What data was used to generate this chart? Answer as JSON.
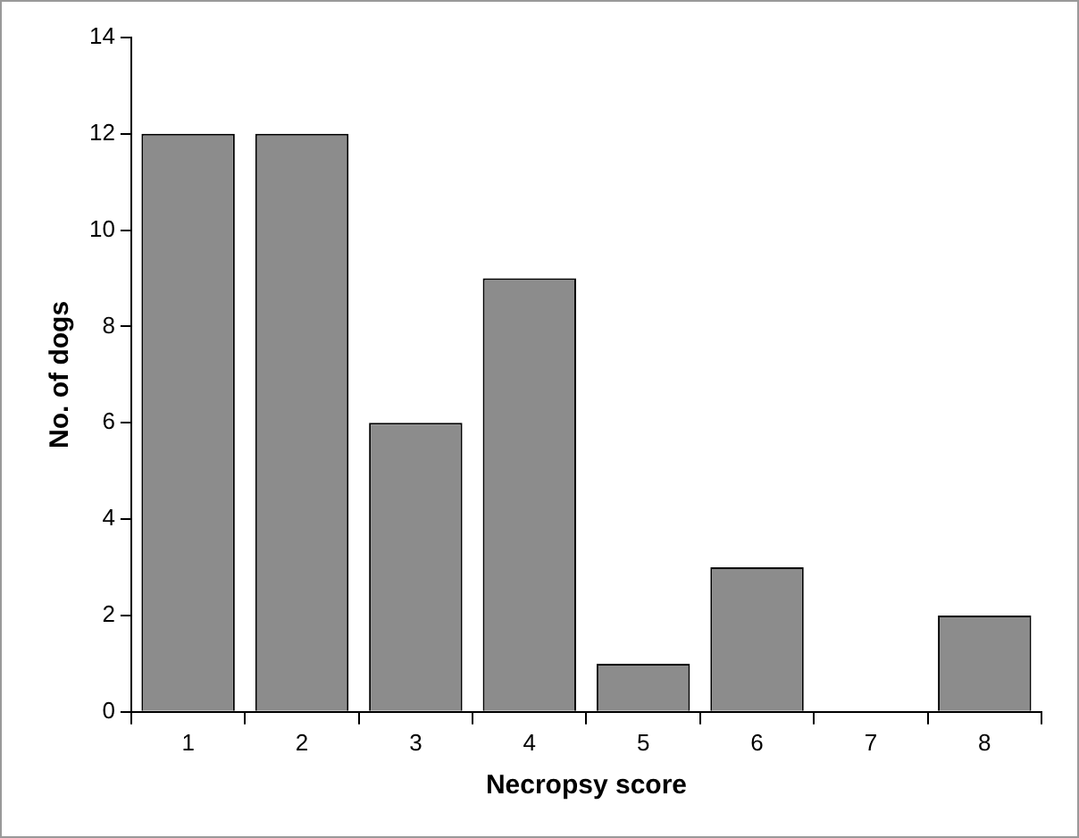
{
  "chart_data": {
    "type": "bar",
    "xlabel": "Necropsy score",
    "ylabel": "No. of dogs",
    "categories": [
      "1",
      "2",
      "3",
      "4",
      "5",
      "6",
      "7",
      "8"
    ],
    "values": [
      12,
      12,
      6,
      9,
      1,
      3,
      0,
      2
    ],
    "color": "#8c8c8c",
    "ylim": [
      0,
      14
    ],
    "yticks": [
      0,
      2,
      4,
      6,
      8,
      10,
      12,
      14
    ],
    "grid": false,
    "legend": false
  }
}
